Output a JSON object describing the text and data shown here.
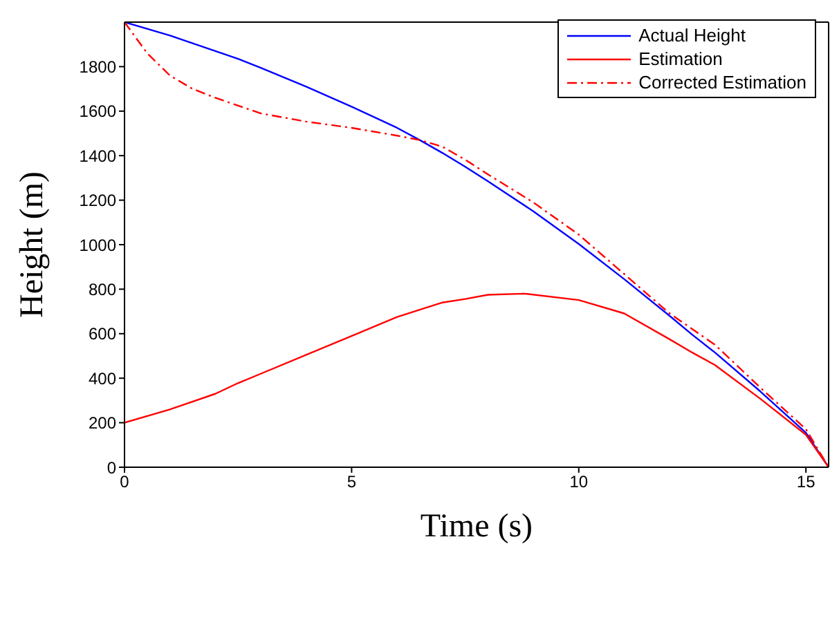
{
  "chart_data": {
    "type": "line",
    "xlabel": "Time (s)",
    "ylabel": "Height (m)",
    "xlim": [
      0,
      15.5
    ],
    "xticks": [
      0,
      5,
      10,
      15
    ],
    "ylim": [
      0,
      2000
    ],
    "yticks": [
      0,
      200,
      400,
      600,
      800,
      1000,
      1200,
      1400,
      1600,
      1800
    ],
    "grid": false,
    "legend": "top right",
    "marker": "none",
    "series": [
      {
        "name": "Actual Height",
        "color": "#0000ff",
        "line_style": "solid",
        "x": [
          0,
          1,
          2,
          2.5,
          3,
          4,
          5,
          6,
          6.5,
          7,
          7.5,
          8,
          9,
          10,
          11,
          12,
          12.5,
          13,
          14,
          15,
          15.5
        ],
        "values": [
          2000,
          1940,
          1870,
          1835,
          1795,
          1710,
          1620,
          1525,
          1470,
          1412,
          1350,
          1285,
          1150,
          1003,
          845,
          680,
          595,
          515,
          340,
          155,
          0
        ]
      },
      {
        "name": "Estimation",
        "color": "#ff0000",
        "line_style": "solid",
        "x": [
          0,
          1,
          2,
          2.5,
          3,
          4,
          5,
          6,
          7,
          7.5,
          8,
          8.8,
          10,
          11,
          12,
          12.5,
          13,
          14,
          15,
          15.5
        ],
        "values": [
          200,
          260,
          330,
          378,
          420,
          505,
          590,
          675,
          740,
          756,
          775,
          780,
          751,
          691,
          575,
          515,
          459,
          307,
          146,
          0
        ]
      },
      {
        "name": "Corrected Estimation",
        "color": "#ff0000",
        "line_style": "dashed",
        "x": [
          0,
          0.5,
          1,
          1.5,
          2,
          3,
          4,
          5,
          6,
          6.5,
          7,
          7.5,
          8,
          9,
          10,
          11,
          12,
          13,
          14,
          15,
          15.5
        ],
        "values": [
          2000,
          1860,
          1760,
          1700,
          1660,
          1590,
          1553,
          1525,
          1490,
          1470,
          1440,
          1382,
          1316,
          1190,
          1045,
          868,
          691,
          550,
          357,
          171,
          0
        ]
      }
    ]
  }
}
